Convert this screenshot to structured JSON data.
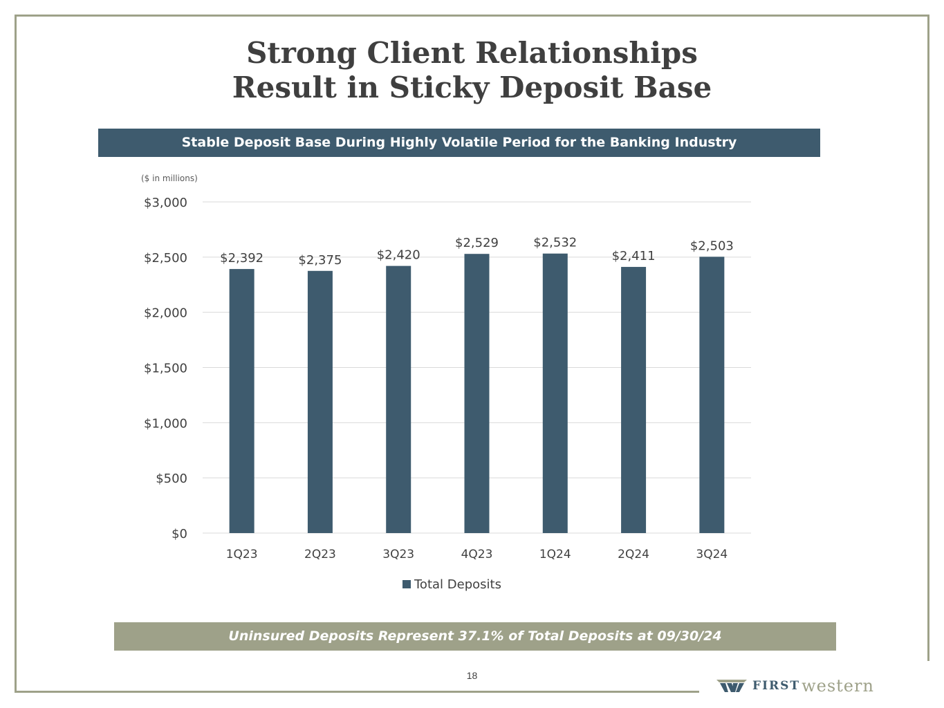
{
  "slide": {
    "title_line1": "Strong Client Relationships",
    "title_line2": "Result in Sticky Deposit Base",
    "banner": "Stable Deposit Base During Highly Volatile Period for the Banking Industry",
    "units": "($ in millions)",
    "footer_banner": "Uninsured Deposits Represent 37.1% of Total Deposits at 09/30/24",
    "page_number": "18",
    "logo_first": "FIRST",
    "logo_western": "western"
  },
  "colors": {
    "bar": "#3e5b6e",
    "grid": "#d9d9d9",
    "frame": "#9ea189"
  },
  "chart_data": {
    "type": "bar",
    "title": "",
    "xlabel": "",
    "ylabel": "($ in millions)",
    "categories": [
      "1Q23",
      "2Q23",
      "3Q23",
      "4Q23",
      "1Q24",
      "2Q24",
      "3Q24"
    ],
    "series": [
      {
        "name": "Total Deposits",
        "values": [
          2392,
          2375,
          2420,
          2529,
          2532,
          2411,
          2503
        ],
        "labels": [
          "$2,392",
          "$2,375",
          "$2,420",
          "$2,529",
          "$2,532",
          "$2,411",
          "$2,503"
        ]
      }
    ],
    "ylim": [
      0,
      3000
    ],
    "yticks": [
      0,
      500,
      1000,
      1500,
      2000,
      2500,
      3000
    ],
    "ytick_labels": [
      "$0",
      "$500",
      "$1,000",
      "$1,500",
      "$2,000",
      "$2,500",
      "$3,000"
    ],
    "grid": true,
    "legend": "bottom"
  }
}
